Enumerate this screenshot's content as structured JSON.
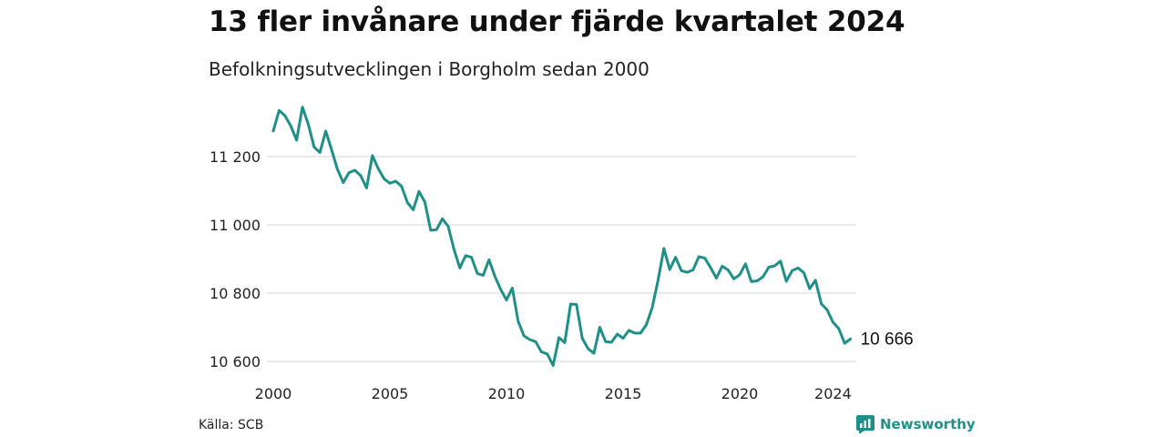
{
  "header": {
    "title": "13 fler invånare under fjärde kvartalet 2024",
    "subtitle": "Befolkningsutvecklingen i Borgholm sedan 2000"
  },
  "footer": {
    "source": "Källa: SCB",
    "brand": "Newsworthy",
    "brand_icon": "newsworthy-logo-icon"
  },
  "colors": {
    "line": "#1f8f87",
    "grid": "#dddddd",
    "brand": "#1f8f87"
  },
  "chart_data": {
    "type": "line",
    "title": "13 fler invånare under fjärde kvartalet 2024",
    "subtitle": "Befolkningsutvecklingen i Borgholm sedan 2000",
    "xlabel": "",
    "ylabel": "",
    "frequency": "quarterly",
    "xlim": [
      2000.0,
      2025.0
    ],
    "ylim": [
      10580,
      11360
    ],
    "grid": true,
    "y_ticks": [
      10600,
      10800,
      11000,
      11200
    ],
    "y_tick_labels": [
      "10 600",
      "10 800",
      "11 000",
      "11 200"
    ],
    "x_ticks": [
      2000,
      2005,
      2010,
      2015,
      2020,
      2024
    ],
    "x_tick_labels": [
      "2000",
      "2005",
      "2010",
      "2015",
      "2020",
      "2024"
    ],
    "end_label": "10 666",
    "series": [
      {
        "x": [
          2000.0,
          2000.25,
          2000.5,
          2000.75,
          2001.0,
          2001.25,
          2001.5,
          2001.75,
          2002.0,
          2002.25,
          2002.5,
          2002.75,
          2003.0,
          2003.25,
          2003.5,
          2003.75,
          2004.0,
          2004.25,
          2004.5,
          2004.75,
          2005.0,
          2005.25,
          2005.5,
          2005.75,
          2006.0,
          2006.25,
          2006.5,
          2006.75,
          2007.0,
          2007.25,
          2007.5,
          2007.75,
          2008.0,
          2008.25,
          2008.5,
          2008.75,
          2009.0,
          2009.25,
          2009.5,
          2009.75,
          2010.0,
          2010.25,
          2010.5,
          2010.75,
          2011.0,
          2011.25,
          2011.5,
          2011.75,
          2012.0,
          2012.25,
          2012.5,
          2012.75,
          2013.0,
          2013.25,
          2013.5,
          2013.75,
          2014.0,
          2014.25,
          2014.5,
          2014.75,
          2015.0,
          2015.25,
          2015.5,
          2015.75,
          2016.0,
          2016.25,
          2016.5,
          2016.75,
          2017.0,
          2017.25,
          2017.5,
          2017.75,
          2018.0,
          2018.25,
          2018.5,
          2018.75,
          2019.0,
          2019.25,
          2019.5,
          2019.75,
          2020.0,
          2020.25,
          2020.5,
          2020.75,
          2021.0,
          2021.25,
          2021.5,
          2021.75,
          2022.0,
          2022.25,
          2022.5,
          2022.75,
          2023.0,
          2023.25,
          2023.5,
          2023.75,
          2024.0,
          2024.25,
          2024.5,
          2024.75
        ],
        "values": [
          11275,
          11335,
          11320,
          11290,
          11248,
          11345,
          11295,
          11228,
          11212,
          11275,
          11220,
          11163,
          11124,
          11153,
          11160,
          11144,
          11108,
          11203,
          11165,
          11135,
          11122,
          11128,
          11113,
          11066,
          11044,
          11098,
          11067,
          10984,
          10986,
          11018,
          10996,
          10928,
          10874,
          10910,
          10905,
          10858,
          10852,
          10898,
          10850,
          10811,
          10780,
          10815,
          10718,
          10675,
          10664,
          10658,
          10628,
          10622,
          10588,
          10670,
          10655,
          10768,
          10767,
          10668,
          10637,
          10624,
          10700,
          10658,
          10656,
          10680,
          10668,
          10691,
          10683,
          10683,
          10708,
          10758,
          10838,
          10931,
          10869,
          10905,
          10866,
          10861,
          10868,
          10907,
          10903,
          10875,
          10844,
          10879,
          10868,
          10842,
          10854,
          10886,
          10834,
          10836,
          10848,
          10876,
          10880,
          10894,
          10835,
          10866,
          10874,
          10860,
          10813,
          10838,
          10769,
          10751,
          10715,
          10696,
          10653,
          10666
        ]
      }
    ]
  }
}
